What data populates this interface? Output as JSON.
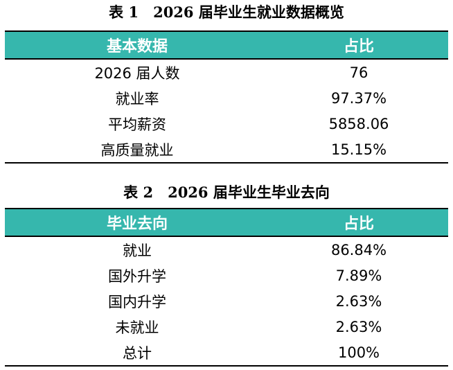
{
  "table1": {
    "caption": "表 1　2026 届毕业生就业数据概览",
    "headers": [
      "基本数据",
      "占比"
    ],
    "rows": [
      {
        "label": "2026 届人数",
        "value": "76"
      },
      {
        "label": "就业率",
        "value": "97.37%"
      },
      {
        "label": "平均薪资",
        "value": "5858.06"
      },
      {
        "label": "高质量就业",
        "value": "15.15%"
      }
    ]
  },
  "table2": {
    "caption": "表 2　2026 届毕业生毕业去向",
    "headers": [
      "毕业去向",
      "占比"
    ],
    "rows": [
      {
        "label": "就业",
        "value": "86.84%"
      },
      {
        "label": "国外升学",
        "value": "7.89%"
      },
      {
        "label": "国内升学",
        "value": "2.63%"
      },
      {
        "label": "未就业",
        "value": "2.63%"
      },
      {
        "label": "总计",
        "value": "100%"
      }
    ]
  },
  "colors": {
    "header_bg": "#36b7ad",
    "header_text": "#ffffff"
  }
}
